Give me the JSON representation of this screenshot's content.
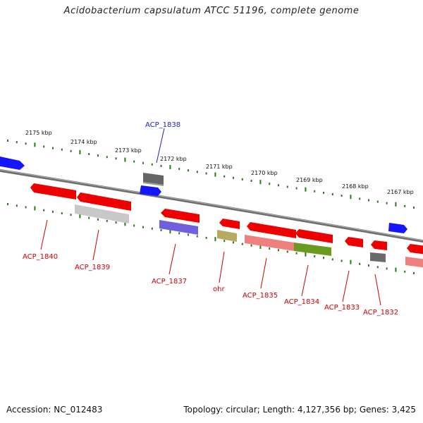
{
  "title": "Acidobacterium capsulatum ATCC 51196, complete genome",
  "footer": {
    "accession": "Accession: NC_012483",
    "info": "Topology: circular; Length: 4,127,356 bp; Genes: 3,425"
  },
  "colors": {
    "forward_gene": "#1010ff",
    "reverse_gene": "#e00000",
    "backbone": "#808080",
    "tick": "#2a7a1a",
    "label_forward": "#2020c0",
    "label_reverse": "#cc0000"
  },
  "scale_labels": [
    "2175 kbp",
    "2174 kbp",
    "2173 kbp",
    "2172 kbp",
    "2171 kbp",
    "2170 kbp",
    "2169 kbp",
    "2168 kbp",
    "2167 kbp"
  ],
  "gene_labels": [
    {
      "text": "ACP_1838",
      "strand": "forward"
    },
    {
      "text": "ACP_1840",
      "strand": "reverse"
    },
    {
      "text": "ACP_1839",
      "strand": "reverse"
    },
    {
      "text": "ACP_1837",
      "strand": "reverse"
    },
    {
      "text": "ohr",
      "strand": "reverse"
    },
    {
      "text": "ACP_1835",
      "strand": "reverse"
    },
    {
      "text": "ACP_1834",
      "strand": "reverse"
    },
    {
      "text": "ACP_1833",
      "strand": "reverse"
    },
    {
      "text": "ACP_1832",
      "strand": "reverse"
    }
  ]
}
